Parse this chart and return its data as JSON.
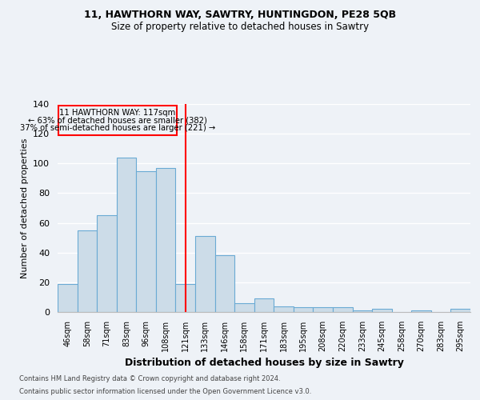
{
  "title1": "11, HAWTHORN WAY, SAWTRY, HUNTINGDON, PE28 5QB",
  "title2": "Size of property relative to detached houses in Sawtry",
  "xlabel": "Distribution of detached houses by size in Sawtry",
  "ylabel": "Number of detached properties",
  "categories": [
    "46sqm",
    "58sqm",
    "71sqm",
    "83sqm",
    "96sqm",
    "108sqm",
    "121sqm",
    "133sqm",
    "146sqm",
    "158sqm",
    "171sqm",
    "183sqm",
    "195sqm",
    "208sqm",
    "220sqm",
    "233sqm",
    "245sqm",
    "258sqm",
    "270sqm",
    "283sqm",
    "295sqm"
  ],
  "values": [
    19,
    55,
    65,
    104,
    95,
    97,
    19,
    51,
    38,
    6,
    9,
    4,
    3,
    3,
    3,
    1,
    2,
    0,
    1,
    0,
    2
  ],
  "bar_color": "#ccdce8",
  "bar_edge_color": "#6aaad4",
  "red_line_index": 6,
  "annotation_line1": "11 HAWTHORN WAY: 117sqm",
  "annotation_line2": "← 63% of detached houses are smaller (382)",
  "annotation_line3": "37% of semi-detached houses are larger (221) →",
  "footer1": "Contains HM Land Registry data © Crown copyright and database right 2024.",
  "footer2": "Contains public sector information licensed under the Open Government Licence v3.0.",
  "ylim": [
    0,
    140
  ],
  "background_color": "#eef2f7"
}
